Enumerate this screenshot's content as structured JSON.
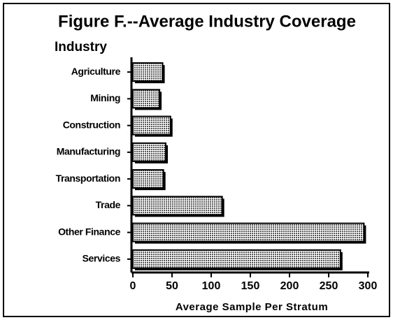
{
  "chart_data": {
    "type": "bar",
    "title": "Figure F.--Average Industry Coverage",
    "ylabel": "Industry",
    "xlabel": "Average Sample Per Stratum",
    "categories": [
      "Agriculture",
      "Mining",
      "Construction",
      "Manufacturing",
      "Transportation",
      "Trade",
      "Other Finance",
      "Services"
    ],
    "values": [
      38,
      34,
      48,
      42,
      39,
      114,
      295,
      265
    ],
    "color": "#9a9a9a",
    "xlim": [
      0,
      300
    ],
    "xticks": [
      0,
      50,
      100,
      150,
      200,
      250,
      300
    ]
  }
}
